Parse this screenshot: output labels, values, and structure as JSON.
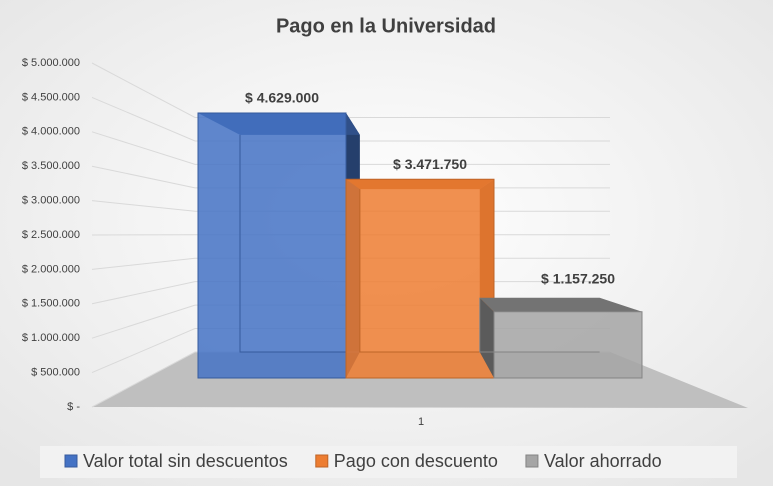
{
  "chart_data": {
    "type": "bar3d",
    "title": "Pago en la Universidad",
    "categories": [
      "1"
    ],
    "series": [
      {
        "name": "Valor total sin descuentos",
        "color": "#4472c4",
        "values": [
          4629000
        ],
        "value_labels": [
          "$ 4.629.000"
        ]
      },
      {
        "name": "Pago con descuento",
        "color": "#ed7d31",
        "values": [
          3471750
        ],
        "value_labels": [
          "$ 3.471.750"
        ]
      },
      {
        "name": "Valor ahorrado",
        "color": "#a5a5a5",
        "values": [
          1157250
        ],
        "value_labels": [
          "$ 1.157.250"
        ]
      }
    ],
    "ylim": [
      0,
      5000000
    ],
    "yticks": [
      {
        "value": 0,
        "label": "$ -"
      },
      {
        "value": 500000,
        "label": "$ 500.000"
      },
      {
        "value": 1000000,
        "label": "$ 1.000.000"
      },
      {
        "value": 1500000,
        "label": "$ 1.500.000"
      },
      {
        "value": 2000000,
        "label": "$ 2.000.000"
      },
      {
        "value": 2500000,
        "label": "$ 2.500.000"
      },
      {
        "value": 3000000,
        "label": "$ 3.000.000"
      },
      {
        "value": 3500000,
        "label": "$ 3.500.000"
      },
      {
        "value": 4000000,
        "label": "$ 4.000.000"
      },
      {
        "value": 4500000,
        "label": "$ 4.500.000"
      },
      {
        "value": 5000000,
        "label": "$ 5.000.000"
      }
    ],
    "grid": true,
    "legend": "bottom"
  }
}
